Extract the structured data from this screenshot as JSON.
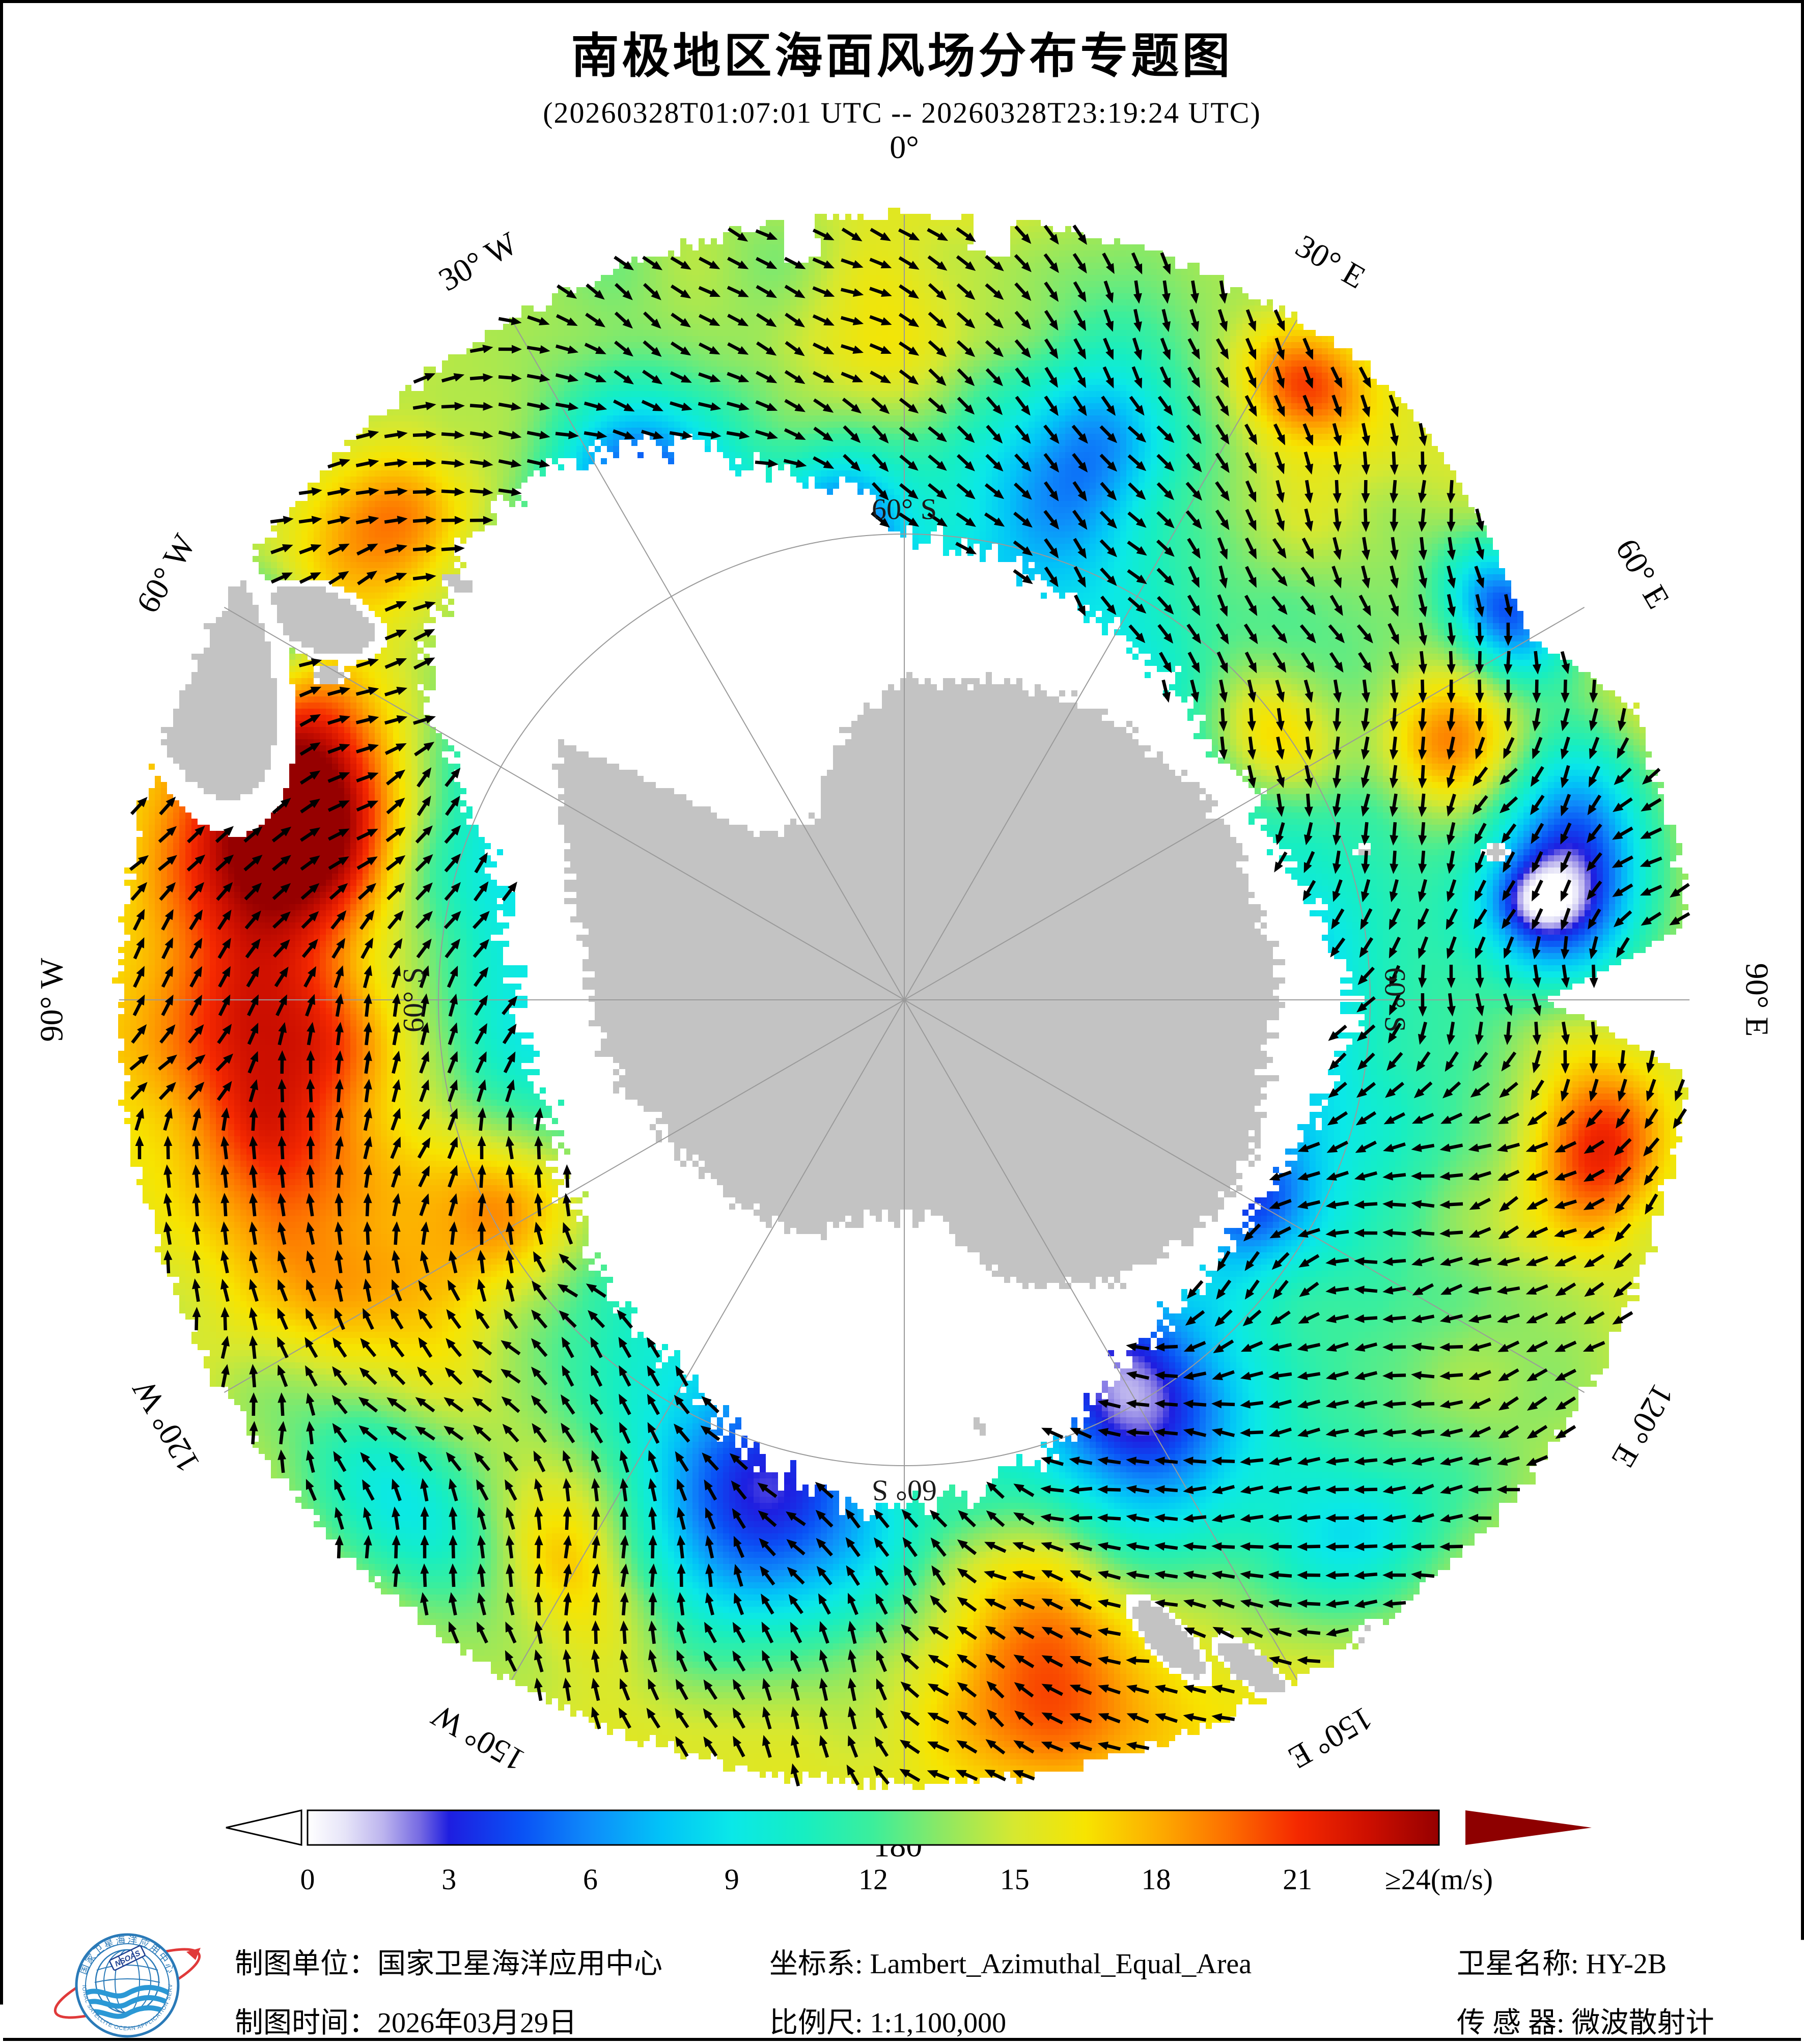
{
  "title": "南极地区海面风场分布专题图",
  "subtitle": "(20260328T01:07:01 UTC -- 20260328T23:19:24 UTC)",
  "map": {
    "longitude_labels": [
      {
        "text": "0°",
        "angle": 0
      },
      {
        "text": "30° E",
        "angle": 30
      },
      {
        "text": "60° E",
        "angle": 60
      },
      {
        "text": "90° E",
        "angle": 90
      },
      {
        "text": "120° E",
        "angle": 120
      },
      {
        "text": "150° E",
        "angle": 150
      },
      {
        "text": "180°",
        "angle": 180
      },
      {
        "text": "150° W",
        "angle": 210
      },
      {
        "text": "120° W",
        "angle": 240
      },
      {
        "text": "90° W",
        "angle": 270
      },
      {
        "text": "60° W",
        "angle": 300
      },
      {
        "text": "30° W",
        "angle": 330
      }
    ],
    "latitude_labels": [
      {
        "text": "60° S",
        "angle": 0
      },
      {
        "text": "60° S",
        "angle": 90
      },
      {
        "text": "60° S",
        "angle": 180
      },
      {
        "text": "60° S",
        "angle": 270
      }
    ]
  },
  "colorbar": {
    "ticks": [
      "0",
      "3",
      "6",
      "9",
      "12",
      "15",
      "18",
      "21"
    ],
    "max_label": "≥24(m/s)",
    "min": 0,
    "max": 24,
    "overflow_color": "#8e0000",
    "stops": [
      [
        0,
        "#ffffff"
      ],
      [
        0.8,
        "#e6e4f8"
      ],
      [
        1.6,
        "#bcb4ee"
      ],
      [
        2.4,
        "#7468e2"
      ],
      [
        3,
        "#1e1ee0"
      ],
      [
        4.5,
        "#0a50f5"
      ],
      [
        6,
        "#0e8cfa"
      ],
      [
        7.5,
        "#02c3f8"
      ],
      [
        9,
        "#0ae8e8"
      ],
      [
        10.5,
        "#16eec2"
      ],
      [
        12,
        "#3cee9b"
      ],
      [
        13.5,
        "#8fe862"
      ],
      [
        15,
        "#d6e830"
      ],
      [
        16.5,
        "#f7e400"
      ],
      [
        18,
        "#fdae00"
      ],
      [
        19.5,
        "#fd7000"
      ],
      [
        21,
        "#f52900"
      ],
      [
        22.5,
        "#cd0f00"
      ],
      [
        24,
        "#960000"
      ]
    ]
  },
  "footer": {
    "lines": [
      "制图单位：国家卫星海洋应用中心",
      "制图时间：2026年03月29日",
      "坐标系: Lambert_Azimuthal_Equal_Area",
      "比例尺: 1:1,100,000",
      "卫星名称: HY-2B",
      "传 感 器: 微波散射计"
    ]
  },
  "logo": {
    "cn": "国家卫星海洋应用中心",
    "en": "NATIONAL SATELLITE OCEAN APPLICATION SERVICE",
    "abbr": "NSOAS"
  },
  "chart_data": {
    "type": "heatmap",
    "title": "南极地区海面风场分布专题图",
    "variable": "sea surface wind field (speed with direction vectors)",
    "unit": "m/s",
    "time_range": "20260328T01:07:01 UTC -- 20260328T23:19:24 UTC",
    "projection": "Lambert_Azimuthal_Equal_Area",
    "map_scale": "1:1,100,000",
    "satellite": "HY-2B",
    "sensor": "微波散射计",
    "producer": "国家卫星海洋应用中心",
    "production_date": "2026年03月29日",
    "colorbar_ticks": [
      0,
      3,
      6,
      9,
      12,
      15,
      18,
      21,
      24
    ],
    "colorbar_max_label": "≥24(m/s)",
    "meridian_labels": [
      "0°",
      "30° E",
      "60° E",
      "90° E",
      "120° E",
      "150° E",
      "180°",
      "150° W",
      "120° W",
      "90° W",
      "60° W",
      "30° W"
    ],
    "parallel_label": "60° S",
    "legend_range": [
      0,
      24
    ]
  }
}
